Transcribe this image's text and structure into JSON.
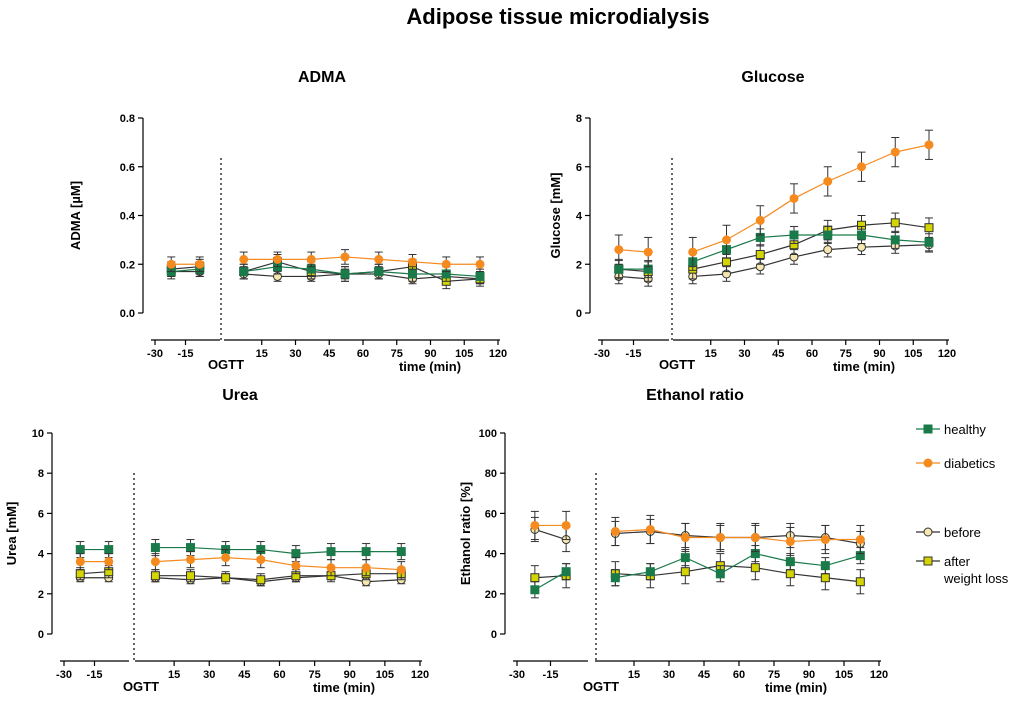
{
  "title": "Adipose tissue microdialysis",
  "colors": {
    "healthy": "#1a7a4a",
    "diabetics": "#f58a1f",
    "before": "#f6e7b0",
    "after": "#d4d400",
    "line_dark": "#333333"
  },
  "legend": [
    {
      "key": "healthy",
      "label": "healthy",
      "marker": "square-icon"
    },
    {
      "key": "diabetics",
      "label": "diabetics",
      "marker": "circle-icon"
    },
    {
      "key": "before",
      "label": "before",
      "marker": "circle-outline-icon"
    },
    {
      "key": "after",
      "label": "after weight loss",
      "label_lines": [
        "after",
        "weight loss"
      ],
      "marker": "square-outline-icon"
    }
  ],
  "chart_data": [
    {
      "type": "line",
      "title": "ADMA",
      "ylabel": "ADMA  [µM]",
      "xlabel": "time (min)",
      "group_label": "OGTT",
      "ylim": [
        0,
        0.8
      ],
      "yticks": [
        "0.0",
        "0.2",
        "0.4",
        "0.6",
        "0.8"
      ],
      "ytick_values": [
        0,
        0.2,
        0.4,
        0.6,
        0.8
      ],
      "xticks": [
        "-30",
        "-15",
        "15",
        "30",
        "45",
        "60",
        "75",
        "90",
        "105",
        "120"
      ],
      "baseline_x": [
        -22,
        -8
      ],
      "x": [
        7,
        22,
        37,
        52,
        67,
        82,
        97,
        112
      ],
      "series": [
        {
          "name": "healthy",
          "baseline": [
            0.17,
            0.18
          ],
          "values": [
            0.17,
            0.19,
            0.18,
            0.16,
            0.17,
            0.16,
            0.16,
            0.15
          ],
          "err": 0.03
        },
        {
          "name": "diabetics",
          "baseline": [
            0.2,
            0.2
          ],
          "values": [
            0.22,
            0.22,
            0.22,
            0.23,
            0.22,
            0.21,
            0.2,
            0.2
          ],
          "err": 0.03
        },
        {
          "name": "before",
          "baseline": [
            0.17,
            0.17
          ],
          "values": [
            0.16,
            0.15,
            0.15,
            0.16,
            0.16,
            0.14,
            0.15,
            0.14
          ],
          "err": 0.02
        },
        {
          "name": "after",
          "baseline": [
            0.18,
            0.19
          ],
          "values": [
            0.17,
            0.21,
            0.17,
            0.16,
            0.17,
            0.19,
            0.13,
            0.14
          ],
          "err": 0.03
        }
      ]
    },
    {
      "type": "line",
      "title": "Glucose",
      "ylabel": "Glucose [mM]",
      "xlabel": "time (min)",
      "group_label": "OGTT",
      "ylim": [
        0,
        8
      ],
      "yticks": [
        "0",
        "2",
        "4",
        "6",
        "8"
      ],
      "ytick_values": [
        0,
        2,
        4,
        6,
        8
      ],
      "xticks": [
        "-30",
        "-15",
        "15",
        "30",
        "45",
        "60",
        "75",
        "90",
        "105",
        "120"
      ],
      "baseline_x": [
        -22,
        -8
      ],
      "x": [
        7,
        22,
        37,
        52,
        67,
        82,
        97,
        112
      ],
      "series": [
        {
          "name": "healthy",
          "baseline": [
            1.8,
            1.8
          ],
          "values": [
            2.1,
            2.6,
            3.1,
            3.2,
            3.2,
            3.2,
            3.0,
            2.9
          ],
          "err": 0.35
        },
        {
          "name": "diabetics",
          "baseline": [
            2.6,
            2.5
          ],
          "values": [
            2.5,
            3.0,
            3.8,
            4.7,
            5.4,
            6.0,
            6.6,
            6.9
          ],
          "err": 0.6
        },
        {
          "name": "before",
          "baseline": [
            1.5,
            1.4
          ],
          "values": [
            1.5,
            1.6,
            1.9,
            2.3,
            2.6,
            2.7,
            2.75,
            2.8
          ],
          "err": 0.3
        },
        {
          "name": "after",
          "baseline": [
            1.8,
            1.7
          ],
          "values": [
            1.8,
            2.1,
            2.4,
            2.8,
            3.4,
            3.6,
            3.7,
            3.5
          ],
          "err": 0.4
        }
      ]
    },
    {
      "type": "line",
      "title": "Urea",
      "ylabel": "Urea [mM]",
      "xlabel": "time (min)",
      "group_label": "OGTT",
      "ylim": [
        0,
        10
      ],
      "yticks": [
        "0",
        "2",
        "4",
        "6",
        "8",
        "10"
      ],
      "ytick_values": [
        0,
        2,
        4,
        6,
        8,
        10
      ],
      "xticks": [
        "-30",
        "-15",
        "15",
        "30",
        "45",
        "60",
        "75",
        "90",
        "105",
        "120"
      ],
      "baseline_x": [
        -22,
        -8
      ],
      "x": [
        7,
        22,
        37,
        52,
        67,
        82,
        97,
        112
      ],
      "series": [
        {
          "name": "healthy",
          "baseline": [
            4.2,
            4.2
          ],
          "values": [
            4.3,
            4.3,
            4.2,
            4.2,
            4.0,
            4.1,
            4.1,
            4.1
          ],
          "err": 0.4
        },
        {
          "name": "diabetics",
          "baseline": [
            3.6,
            3.6
          ],
          "values": [
            3.6,
            3.7,
            3.8,
            3.7,
            3.4,
            3.3,
            3.3,
            3.2
          ],
          "err": 0.4
        },
        {
          "name": "before",
          "baseline": [
            2.8,
            2.8
          ],
          "values": [
            2.8,
            2.7,
            2.8,
            2.6,
            2.8,
            2.9,
            2.6,
            2.7
          ],
          "err": 0.2
        },
        {
          "name": "after",
          "baseline": [
            3.0,
            3.1
          ],
          "values": [
            2.9,
            2.9,
            2.8,
            2.7,
            2.9,
            2.9,
            3.0,
            3.0
          ],
          "err": 0.3
        }
      ]
    },
    {
      "type": "line",
      "title": "Ethanol ratio",
      "ylabel": "Ethanol ratio [%]",
      "xlabel": "time (min)",
      "group_label": "OGTT",
      "ylim": [
        0,
        100
      ],
      "yticks": [
        "0",
        "20",
        "40",
        "60",
        "80",
        "100"
      ],
      "ytick_values": [
        0,
        20,
        40,
        60,
        80,
        100
      ],
      "xticks": [
        "-30",
        "-15",
        "15",
        "30",
        "45",
        "60",
        "75",
        "90",
        "105",
        "120"
      ],
      "baseline_x": [
        -22,
        -8
      ],
      "x": [
        7,
        22,
        37,
        52,
        67,
        82,
        97,
        112
      ],
      "series": [
        {
          "name": "healthy",
          "baseline": [
            22,
            31
          ],
          "values": [
            28,
            31,
            38,
            30,
            40,
            36,
            34,
            39
          ],
          "err": 4
        },
        {
          "name": "diabetics",
          "baseline": [
            54,
            54
          ],
          "values": [
            51,
            52,
            48,
            48,
            48,
            46,
            47,
            47
          ],
          "err": 7
        },
        {
          "name": "before",
          "baseline": [
            52,
            47
          ],
          "values": [
            50,
            51,
            49,
            48,
            48,
            49,
            48,
            45
          ],
          "err": 6
        },
        {
          "name": "after",
          "baseline": [
            28,
            29
          ],
          "values": [
            30,
            29,
            31,
            34,
            33,
            30,
            28,
            26
          ],
          "err": 6
        }
      ]
    }
  ]
}
